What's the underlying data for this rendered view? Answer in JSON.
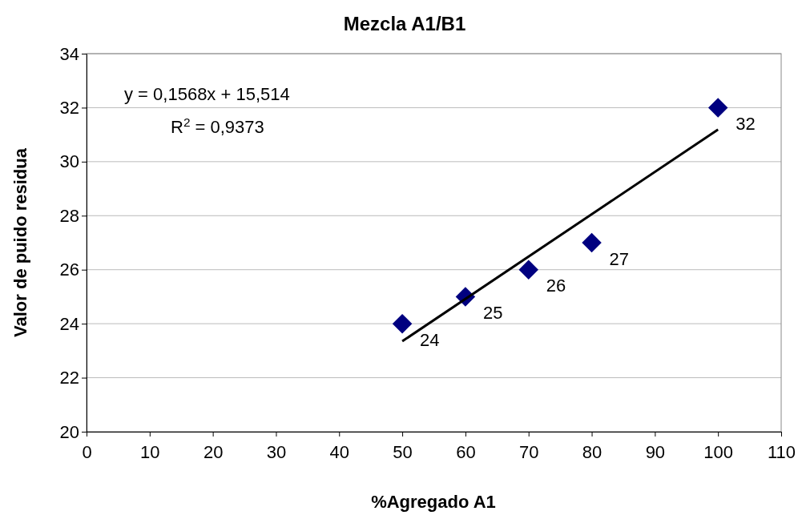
{
  "chart_data": {
    "type": "scatter",
    "title": "Mezcla A1/B1",
    "xlabel": "%Agregado A1",
    "ylabel": "Valor de puido residua",
    "xlim": [
      0,
      110
    ],
    "xticks": [
      0,
      10,
      20,
      30,
      40,
      50,
      60,
      70,
      80,
      90,
      100,
      110
    ],
    "ylim": [
      20,
      34
    ],
    "yticks": [
      20,
      22,
      24,
      26,
      28,
      30,
      32,
      34
    ],
    "grid": "y",
    "series": [
      {
        "color": "#000080",
        "marker": "diamond",
        "x": [
          50,
          60,
          70,
          80,
          100
        ],
        "values": [
          24,
          25,
          26,
          27,
          32
        ],
        "value_labels": [
          "24",
          "25",
          "26",
          "27",
          "32"
        ]
      },
      {
        "type": "line",
        "color": "#000000",
        "marker": "none",
        "x": [
          50,
          100
        ],
        "values": [
          23.35,
          31.19
        ],
        "line_style": "solid"
      }
    ],
    "annotations": [
      "y = 0,1568x + 15,514",
      "R$^{2}$ = 0,9373"
    ]
  }
}
